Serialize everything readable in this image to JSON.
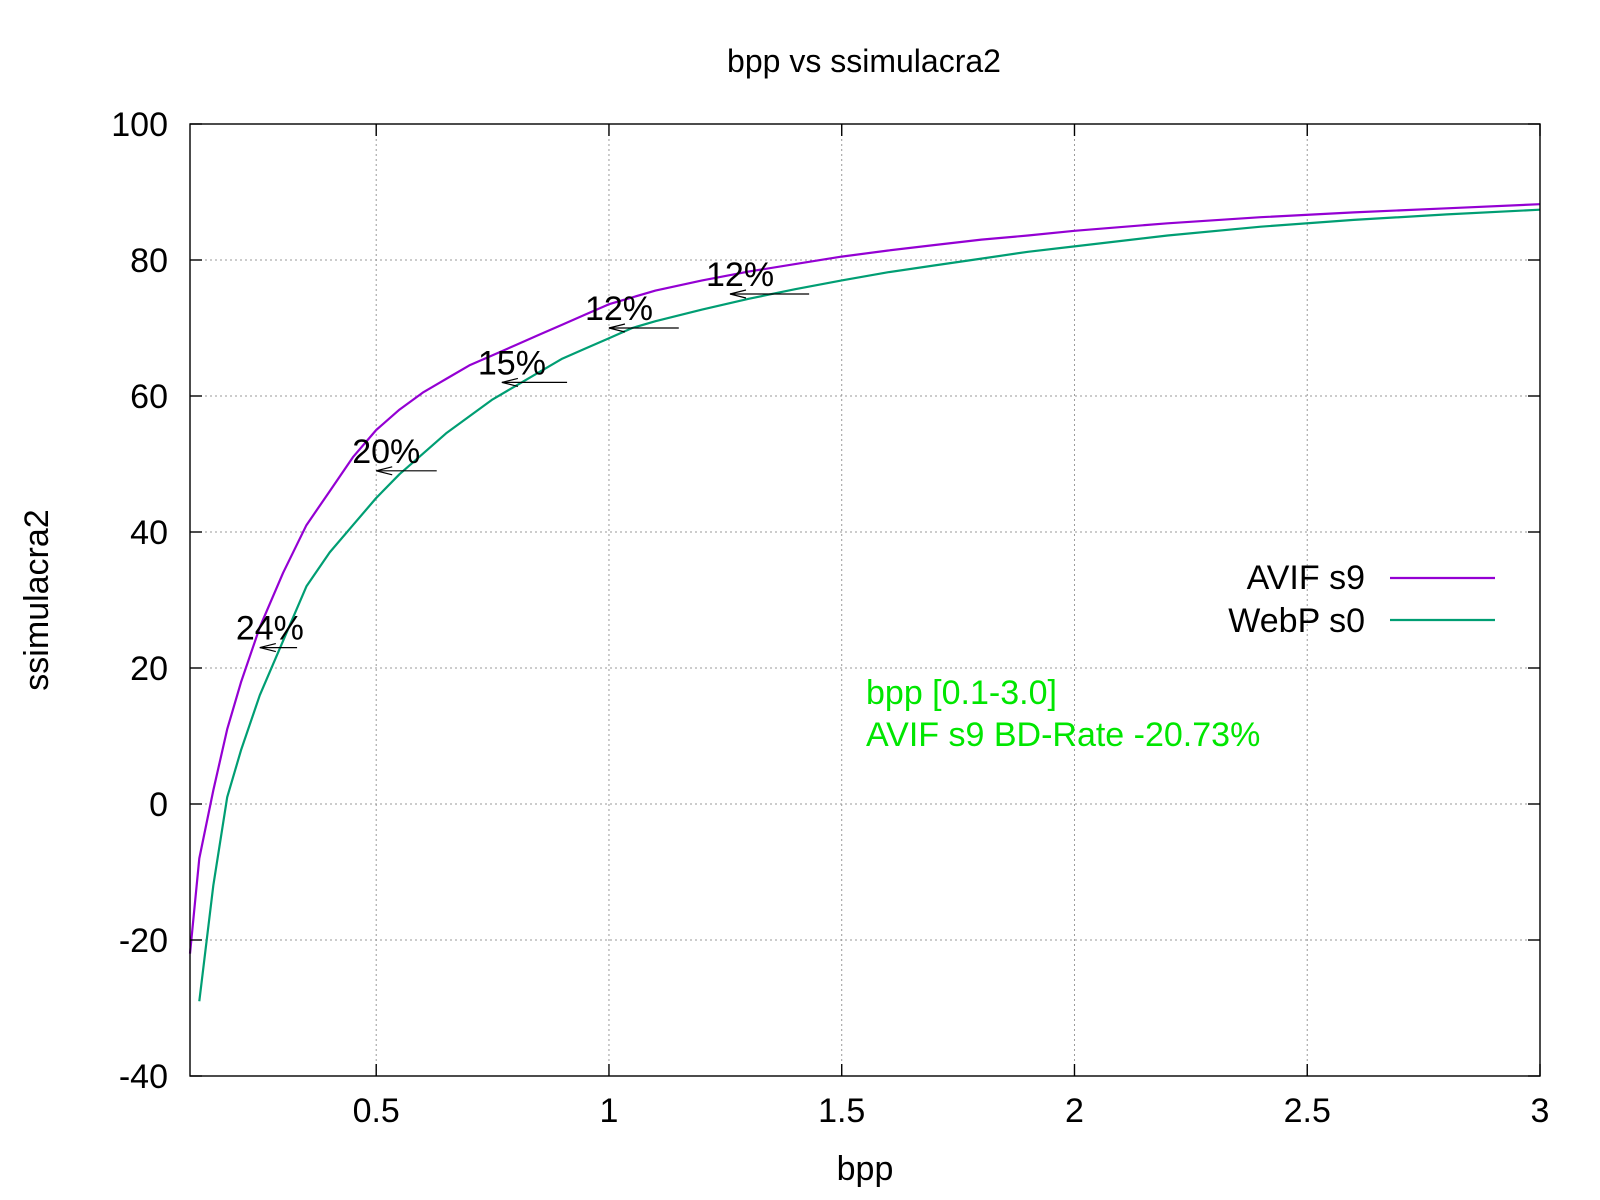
{
  "chart_data": {
    "type": "line",
    "title": "bpp vs ssimulacra2",
    "xlabel": "bpp",
    "ylabel": "ssimulacra2",
    "xlim": [
      0.1,
      3.0
    ],
    "ylim": [
      -40,
      100
    ],
    "xticks": [
      0.5,
      1,
      1.5,
      2,
      2.5,
      3
    ],
    "xtick_labels": [
      "0.5",
      "1",
      "1.5",
      "2",
      "2.5",
      "3"
    ],
    "yticks": [
      -40,
      -20,
      0,
      20,
      40,
      60,
      80,
      100
    ],
    "ytick_labels": [
      "-40",
      "-20",
      "0",
      "20",
      "40",
      "60",
      "80",
      "100"
    ],
    "grid": true,
    "legend_position": "right",
    "series": [
      {
        "name": "AVIF s9",
        "color": "#9400d3",
        "x": [
          0.1,
          0.12,
          0.15,
          0.18,
          0.21,
          0.25,
          0.3,
          0.35,
          0.4,
          0.45,
          0.5,
          0.55,
          0.6,
          0.65,
          0.7,
          0.75,
          0.8,
          0.85,
          0.9,
          0.95,
          1.0,
          1.05,
          1.1,
          1.2,
          1.3,
          1.4,
          1.5,
          1.6,
          1.7,
          1.8,
          1.9,
          2.0,
          2.2,
          2.4,
          2.6,
          2.8,
          3.0
        ],
        "y": [
          -22,
          -8,
          2,
          11,
          18,
          26,
          34,
          41,
          46,
          51,
          55,
          58,
          60.5,
          62.5,
          64.5,
          66,
          67.5,
          69,
          70.5,
          72,
          73.5,
          74.5,
          75.5,
          77,
          78.3,
          79.4,
          80.5,
          81.4,
          82.2,
          83,
          83.6,
          84.3,
          85.4,
          86.3,
          87,
          87.6,
          88.2
        ]
      },
      {
        "name": "WebP s0",
        "color": "#009e73",
        "x": [
          0.12,
          0.15,
          0.18,
          0.21,
          0.25,
          0.3,
          0.35,
          0.4,
          0.45,
          0.5,
          0.55,
          0.6,
          0.65,
          0.7,
          0.75,
          0.8,
          0.85,
          0.9,
          0.95,
          1.0,
          1.05,
          1.1,
          1.2,
          1.3,
          1.4,
          1.5,
          1.6,
          1.7,
          1.8,
          1.9,
          2.0,
          2.2,
          2.4,
          2.6,
          2.8,
          3.0
        ],
        "y": [
          -29,
          -12,
          1,
          8,
          16,
          24,
          32,
          37,
          41,
          45,
          48.5,
          51.5,
          54.5,
          57,
          59.5,
          61.5,
          63.5,
          65.5,
          67,
          68.5,
          70,
          71,
          72.7,
          74.3,
          75.7,
          77,
          78.2,
          79.2,
          80.2,
          81.2,
          82,
          83.6,
          84.9,
          85.9,
          86.7,
          87.4
        ]
      }
    ],
    "annotations": [
      {
        "text": "24%",
        "x_from": 0.33,
        "x_to": 0.25,
        "y": 23
      },
      {
        "text": "20%",
        "x_from": 0.63,
        "x_to": 0.5,
        "y": 49
      },
      {
        "text": "15%",
        "x_from": 0.91,
        "x_to": 0.77,
        "y": 62
      },
      {
        "text": "12%",
        "x_from": 1.15,
        "x_to": 1.0,
        "y": 70
      },
      {
        "text": "12%",
        "x_from": 1.43,
        "x_to": 1.26,
        "y": 75
      }
    ],
    "notes": [
      "bpp [0.1-3.0]",
      "AVIF s9 BD-Rate -20.73%"
    ],
    "note_color": "#00e600"
  }
}
